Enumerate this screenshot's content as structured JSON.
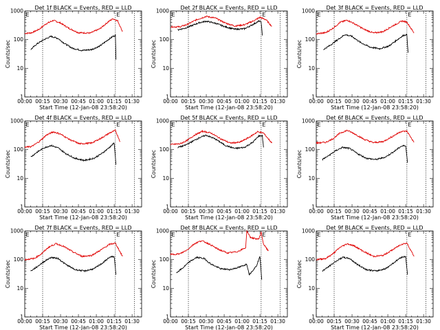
{
  "chart_data": {
    "type": "line",
    "figure_layout": "3x3 grid",
    "common": {
      "xlabel": "Start Time (12-Jan-08 23:58:20)",
      "ylabel": "Counts/sec",
      "x_tick_labels": [
        "00:00",
        "00:15",
        "00:30",
        "00:45",
        "01:00",
        "01:15",
        "01:30"
      ],
      "x_tick_minutes": [
        0,
        15,
        30,
        45,
        60,
        75,
        90
      ],
      "x_range_minutes": [
        0,
        98
      ],
      "y_scale": "log",
      "y_range": [
        1,
        1000
      ],
      "y_tick_values": [
        1,
        10,
        100,
        1000
      ],
      "y_tick_labels": [
        "1",
        "10",
        "100",
        "1000"
      ],
      "vertical_markers_minutes": [
        15,
        76,
        92
      ],
      "marker_label": "E",
      "marker_label_minutes": [
        0,
        76
      ],
      "series_colors": {
        "events": "#000000",
        "lld": "#e00000"
      },
      "grid": false
    },
    "panels": [
      {
        "title": "Det 1f BLACK = Events, RED = LLD",
        "show_ylabel": true,
        "events": {
          "x": [
            5,
            10,
            16,
            22,
            28,
            33,
            40,
            48,
            56,
            63,
            70,
            74,
            76,
            76.5
          ],
          "y": [
            45,
            70,
            100,
            130,
            110,
            75,
            50,
            42,
            45,
            60,
            100,
            130,
            140,
            20
          ]
        },
        "lld": {
          "x": [
            0,
            6,
            12,
            18,
            24,
            30,
            37,
            45,
            55,
            63,
            70,
            74,
            78,
            82
          ],
          "y": [
            165,
            175,
            230,
            360,
            470,
            380,
            250,
            175,
            170,
            240,
            420,
            540,
            450,
            190
          ]
        }
      },
      {
        "title": "Det 2f BLACK = Events, RED = LLD",
        "show_ylabel": true,
        "events": {
          "x": [
            6,
            12,
            18,
            24,
            30,
            38,
            46,
            54,
            62,
            68,
            74,
            76,
            77
          ],
          "y": [
            220,
            250,
            310,
            390,
            440,
            370,
            280,
            230,
            240,
            320,
            440,
            420,
            140
          ]
        },
        "lld": {
          "x": [
            0,
            8,
            14,
            22,
            30,
            38,
            46,
            54,
            62,
            70,
            75,
            80,
            85
          ],
          "y": [
            280,
            280,
            340,
            500,
            650,
            560,
            380,
            300,
            330,
            460,
            600,
            500,
            290
          ]
        }
      },
      {
        "title": "Det 3f BLACK = Events, RED = LLD",
        "show_ylabel": true,
        "events": {
          "x": [
            6,
            12,
            18,
            24,
            30,
            37,
            45,
            53,
            61,
            68,
            73,
            76,
            77
          ],
          "y": [
            45,
            65,
            100,
            150,
            130,
            80,
            55,
            48,
            60,
            100,
            140,
            150,
            35
          ]
        },
        "lld": {
          "x": [
            0,
            8,
            14,
            20,
            26,
            32,
            40,
            48,
            56,
            64,
            72,
            76,
            82
          ],
          "y": [
            160,
            175,
            250,
            400,
            480,
            360,
            230,
            170,
            190,
            300,
            450,
            410,
            170
          ]
        }
      },
      {
        "title": "Det 4f BLACK = Events, RED = LLD",
        "show_ylabel": true,
        "events": {
          "x": [
            5,
            10,
            16,
            22,
            28,
            34,
            42,
            50,
            58,
            65,
            71,
            75,
            76.5
          ],
          "y": [
            55,
            80,
            115,
            140,
            115,
            75,
            50,
            42,
            50,
            75,
            120,
            170,
            30
          ]
        },
        "lld": {
          "x": [
            0,
            6,
            12,
            18,
            24,
            30,
            38,
            46,
            56,
            64,
            71,
            76,
            80
          ],
          "y": [
            120,
            130,
            190,
            320,
            420,
            350,
            220,
            160,
            170,
            250,
            380,
            470,
            190
          ]
        }
      },
      {
        "title": "Det 5f BLACK = Events, RED = LLD",
        "show_ylabel": true,
        "events": {
          "x": [
            6,
            12,
            18,
            24,
            30,
            38,
            46,
            54,
            62,
            69,
            74,
            77,
            78
          ],
          "y": [
            120,
            140,
            190,
            260,
            320,
            230,
            140,
            110,
            120,
            180,
            300,
            310,
            120
          ]
        },
        "lld": {
          "x": [
            0,
            8,
            14,
            20,
            27,
            34,
            42,
            50,
            58,
            66,
            73,
            78,
            85
          ],
          "y": [
            150,
            160,
            210,
            320,
            440,
            380,
            240,
            170,
            180,
            270,
            420,
            380,
            170
          ]
        }
      },
      {
        "title": "Det 6f BLACK = Events, RED = LLD",
        "show_ylabel": true,
        "events": {
          "x": [
            5,
            10,
            16,
            22,
            28,
            34,
            42,
            50,
            58,
            65,
            71,
            75,
            76.5
          ],
          "y": [
            45,
            60,
            90,
            120,
            110,
            75,
            50,
            45,
            55,
            85,
            130,
            140,
            35
          ]
        },
        "lld": {
          "x": [
            0,
            8,
            14,
            20,
            26,
            32,
            40,
            48,
            56,
            64,
            71,
            76,
            82
          ],
          "y": [
            170,
            180,
            240,
            380,
            470,
            360,
            230,
            175,
            190,
            290,
            430,
            440,
            180
          ]
        }
      },
      {
        "title": "Det 7f BLACK = Events, RED = LLD",
        "show_ylabel": true,
        "events": {
          "x": [
            5,
            10,
            16,
            22,
            28,
            34,
            42,
            50,
            58,
            65,
            71,
            75,
            76.5
          ],
          "y": [
            40,
            55,
            85,
            120,
            110,
            70,
            45,
            40,
            48,
            75,
            120,
            130,
            30
          ]
        },
        "lld": {
          "x": [
            0,
            8,
            14,
            20,
            26,
            32,
            40,
            48,
            56,
            64,
            71,
            76,
            82
          ],
          "y": [
            100,
            110,
            160,
            270,
            360,
            300,
            190,
            130,
            140,
            220,
            340,
            380,
            130
          ]
        }
      },
      {
        "title": "Det 8f BLACK = Events, RED = LLD",
        "show_ylabel": true,
        "events": {
          "x": [
            5,
            10,
            16,
            22,
            28,
            34,
            42,
            50,
            58,
            64,
            66,
            72,
            75,
            76.5
          ],
          "y": [
            35,
            50,
            85,
            120,
            110,
            70,
            48,
            45,
            55,
            70,
            30,
            60,
            130,
            20
          ]
        },
        "lld": {
          "x": [
            0,
            8,
            14,
            20,
            26,
            32,
            40,
            48,
            56,
            63,
            64,
            67,
            70,
            74,
            76,
            78,
            82
          ],
          "y": [
            150,
            160,
            220,
            360,
            460,
            360,
            230,
            170,
            190,
            260,
            1000,
            600,
            550,
            520,
            900,
            350,
            200
          ]
        }
      },
      {
        "title": "Det 9f BLACK = Events, RED = LLD",
        "show_ylabel": true,
        "events": {
          "x": [
            5,
            10,
            16,
            22,
            28,
            34,
            42,
            50,
            58,
            65,
            71,
            75,
            76.5
          ],
          "y": [
            40,
            55,
            85,
            120,
            110,
            70,
            45,
            40,
            48,
            78,
            120,
            130,
            30
          ]
        },
        "lld": {
          "x": [
            0,
            8,
            14,
            20,
            26,
            32,
            40,
            48,
            56,
            64,
            71,
            76,
            82
          ],
          "y": [
            100,
            110,
            160,
            270,
            360,
            300,
            190,
            130,
            140,
            220,
            340,
            380,
            130
          ]
        }
      }
    ]
  }
}
